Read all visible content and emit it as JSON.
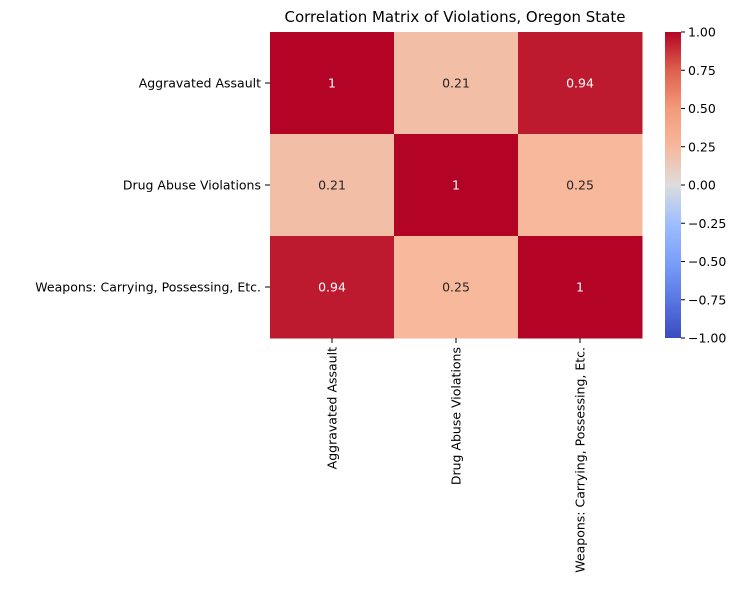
{
  "chart_data": {
    "type": "heatmap",
    "title": "Correlation Matrix of Violations, Oregon State",
    "x_labels": [
      "Aggravated Assault",
      "Drug Abuse Violations",
      "Weapons: Carrying, Possessing, Etc."
    ],
    "y_labels": [
      "Aggravated Assault",
      "Drug Abuse Violations",
      "Weapons: Carrying, Possessing, Etc."
    ],
    "values": [
      [
        1,
        0.21,
        0.94
      ],
      [
        0.21,
        1,
        0.25
      ],
      [
        0.94,
        0.25,
        1
      ]
    ],
    "annotations": [
      [
        "1",
        "0.21",
        "0.94"
      ],
      [
        "0.21",
        "1",
        "0.25"
      ],
      [
        "0.94",
        "0.25",
        "1"
      ]
    ],
    "colormap": "coolwarm",
    "vmin": -1,
    "vmax": 1,
    "colorbar_ticks": [
      "1.00",
      "0.75",
      "0.50",
      "0.25",
      "0.00",
      "−0.25",
      "−0.50",
      "−0.75",
      "−1.00"
    ],
    "colorbar_tick_values": [
      1,
      0.75,
      0.5,
      0.25,
      0,
      -0.25,
      -0.5,
      -0.75,
      -1
    ],
    "colors": {
      "low": "#3b4cc0",
      "mid": "#dddddd",
      "high": "#b40426"
    }
  }
}
